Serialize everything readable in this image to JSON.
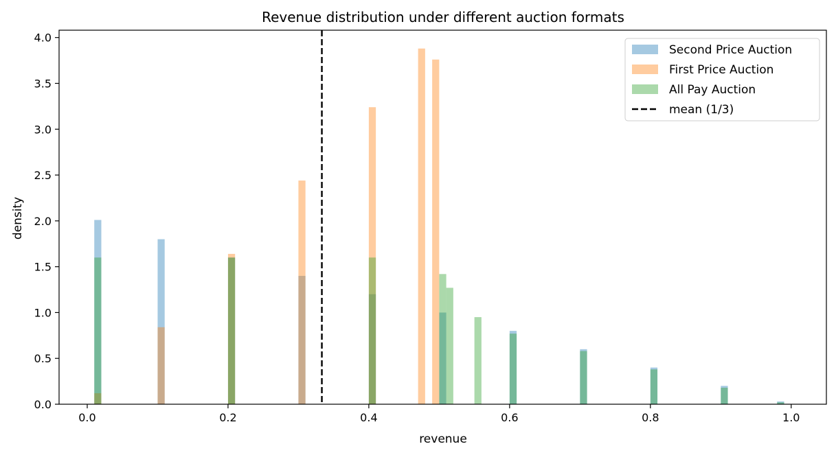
{
  "chart_data": {
    "type": "histogram",
    "title": "Revenue distribution under different auction formats",
    "xlabel": "revenue",
    "ylabel": "density",
    "xlim": [
      -0.04,
      1.05
    ],
    "ylim": [
      0,
      4.08
    ],
    "xticks": [
      0.0,
      0.2,
      0.4,
      0.6,
      0.8,
      1.0
    ],
    "xtick_labels": [
      "0.0",
      "0.2",
      "0.4",
      "0.6",
      "0.8",
      "1.0"
    ],
    "yticks": [
      0.0,
      0.5,
      1.0,
      1.5,
      2.0,
      2.5,
      3.0,
      3.5,
      4.0
    ],
    "ytick_labels": [
      "0.0",
      "0.5",
      "1.0",
      "1.5",
      "2.0",
      "2.5",
      "3.0",
      "3.5",
      "4.0"
    ],
    "grid": false,
    "legend_position": "top-right",
    "series": [
      {
        "name": "Second Price Auction",
        "color": "#1f77b4",
        "opacity": 0.4,
        "shape": "density 2(1-x) for x in [0.01, 0.99]",
        "bins": [
          {
            "x0": 0.01,
            "x1": 0.02,
            "value": 2.01
          },
          {
            "x0": 0.1,
            "x1": 0.11,
            "value": 1.8
          },
          {
            "x0": 0.2,
            "x1": 0.21,
            "value": 1.6
          },
          {
            "x0": 0.3,
            "x1": 0.31,
            "value": 1.4
          },
          {
            "x0": 0.4,
            "x1": 0.41,
            "value": 1.2
          },
          {
            "x0": 0.5,
            "x1": 0.51,
            "value": 1.0
          },
          {
            "x0": 0.6,
            "x1": 0.61,
            "value": 0.8
          },
          {
            "x0": 0.7,
            "x1": 0.71,
            "value": 0.6
          },
          {
            "x0": 0.8,
            "x1": 0.81,
            "value": 0.4
          },
          {
            "x0": 0.9,
            "x1": 0.91,
            "value": 0.2
          },
          {
            "x0": 0.98,
            "x1": 0.99,
            "value": 0.03
          }
        ]
      },
      {
        "name": "First Price Auction",
        "color": "#ff7f0e",
        "opacity": 0.4,
        "shape": "density 8x rising on [0.01, 0.5], then 0",
        "bins": [
          {
            "x0": 0.01,
            "x1": 0.02,
            "value": 0.12
          },
          {
            "x0": 0.1,
            "x1": 0.11,
            "value": 0.84
          },
          {
            "x0": 0.2,
            "x1": 0.21,
            "value": 1.64
          },
          {
            "x0": 0.3,
            "x1": 0.31,
            "value": 2.44
          },
          {
            "x0": 0.4,
            "x1": 0.41,
            "value": 3.24
          },
          {
            "x0": 0.47,
            "x1": 0.48,
            "value": 3.88
          },
          {
            "x0": 0.49,
            "x1": 0.5,
            "value": 3.76
          }
        ]
      },
      {
        "name": "All Pay Auction",
        "color": "#2ca02c",
        "opacity": 0.4,
        "shape": "density ~1.6 on [0.01, 0.5], tail decreasing to 0 at 1.0",
        "bins": [
          {
            "x0": 0.01,
            "x1": 0.02,
            "value": 1.6
          },
          {
            "x0": 0.2,
            "x1": 0.21,
            "value": 1.6
          },
          {
            "x0": 0.4,
            "x1": 0.41,
            "value": 1.6
          },
          {
            "x0": 0.5,
            "x1": 0.51,
            "value": 1.42
          },
          {
            "x0": 0.51,
            "x1": 0.52,
            "value": 1.27
          },
          {
            "x0": 0.55,
            "x1": 0.56,
            "value": 0.95
          },
          {
            "x0": 0.6,
            "x1": 0.61,
            "value": 0.77
          },
          {
            "x0": 0.7,
            "x1": 0.71,
            "value": 0.58
          },
          {
            "x0": 0.8,
            "x1": 0.81,
            "value": 0.38
          },
          {
            "x0": 0.9,
            "x1": 0.91,
            "value": 0.18
          },
          {
            "x0": 0.98,
            "x1": 0.99,
            "value": 0.02
          }
        ]
      }
    ],
    "reference_lines": [
      {
        "name": "mean (1/3)",
        "orientation": "vertical",
        "x": 0.3333,
        "color": "#000000",
        "style": "dashed"
      }
    ]
  }
}
